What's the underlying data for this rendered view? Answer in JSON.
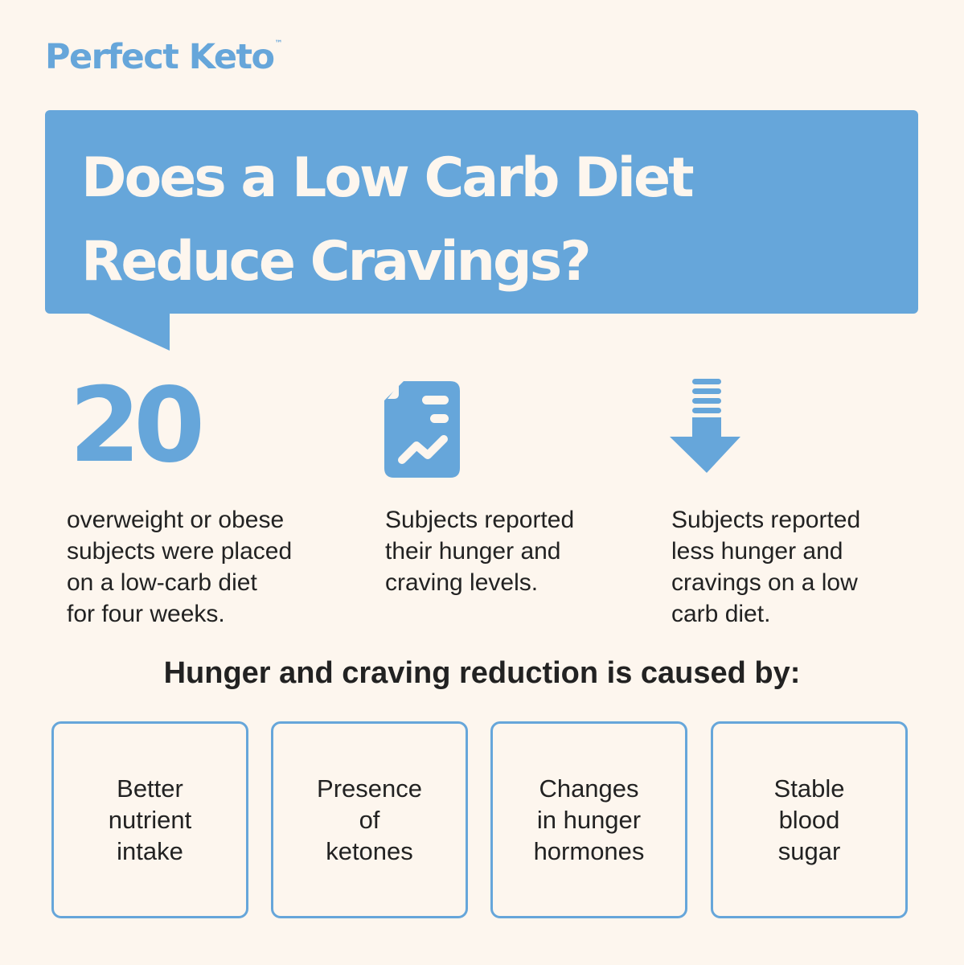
{
  "brand": {
    "name": "Perfect Keto",
    "trademark": "™"
  },
  "headline": {
    "text": "Does a Low Carb Diet\nReduce Cravings?"
  },
  "columns": [
    {
      "stat": "20",
      "text": "overweight or obese\nsubjects were placed\non a low-carb diet\nfor four weeks."
    },
    {
      "icon": "report-chart-icon",
      "text": "Subjects reported\ntheir hunger and\ncraving levels."
    },
    {
      "icon": "arrow-down-icon",
      "text": "Subjects reported\nless hunger and\ncravings on a low\ncarb diet."
    }
  ],
  "causes": {
    "heading": "Hunger and craving reduction is caused by:",
    "items": [
      "Better\nnutrient\nintake",
      "Presence\nof\nketones",
      "Changes\nin hunger\nhormones",
      "Stable\nblood\nsugar"
    ]
  },
  "colors": {
    "accent": "#66a6da",
    "background": "#fdf6ee",
    "text": "#222222"
  }
}
